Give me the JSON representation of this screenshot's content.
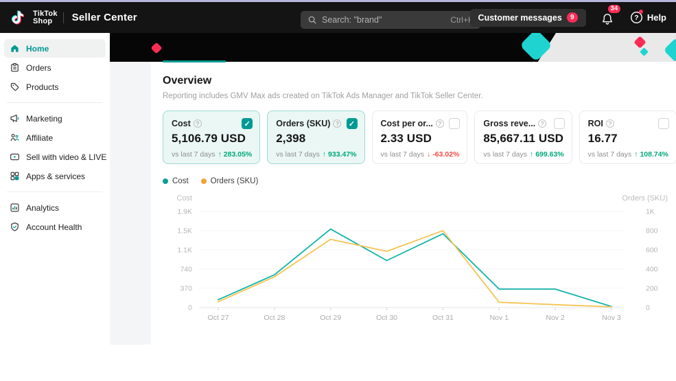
{
  "colors": {
    "accent": "#009a93",
    "positive": "#00a87a",
    "negative": "#f54a45",
    "brand_red": "#fe2c55",
    "card_selected_bg": "#eaf7f4",
    "card_selected_border": "#9edbd2"
  },
  "header": {
    "logo_line1": "TikTok",
    "logo_line2": "Shop",
    "app_title": "Seller Center",
    "search": {
      "placeholder": "Search: \"brand\"",
      "shortcut": "Ctrl+K"
    },
    "customer_messages": {
      "label": "Customer messages",
      "badge": "9"
    },
    "notifications_badge": "34",
    "help_label": "Help"
  },
  "sidebar": {
    "items": [
      {
        "label": "Home",
        "icon": "home",
        "active": true,
        "group": 0
      },
      {
        "label": "Orders",
        "icon": "orders",
        "active": false,
        "group": 0
      },
      {
        "label": "Products",
        "icon": "products",
        "active": false,
        "group": 0
      },
      {
        "label": "Marketing",
        "icon": "marketing",
        "active": false,
        "group": 1
      },
      {
        "label": "Affiliate",
        "icon": "affiliate",
        "active": false,
        "group": 1
      },
      {
        "label": "Sell with video & LIVE",
        "icon": "video",
        "active": false,
        "group": 1
      },
      {
        "label": "Apps & services",
        "icon": "apps",
        "active": false,
        "group": 1
      },
      {
        "label": "Analytics",
        "icon": "analytics",
        "active": false,
        "group": 2
      },
      {
        "label": "Account Health",
        "icon": "health",
        "active": false,
        "group": 2
      }
    ]
  },
  "overview": {
    "title": "Overview",
    "subtitle": "Reporting includes GMV Max ads created on TikTok Ads Manager and TikTok Seller Center.",
    "cards": [
      {
        "label": "Cost",
        "value": "5,106.79 USD",
        "compare": "vs last 7 days",
        "delta": "283.05%",
        "direction": "up",
        "checked": true
      },
      {
        "label": "Orders (SKU)",
        "value": "2,398",
        "compare": "vs last 7 days",
        "delta": "933.47%",
        "direction": "up",
        "checked": true
      },
      {
        "label": "Cost per or...",
        "value": "2.33 USD",
        "compare": "vs last 7 days",
        "delta": "-63.02%",
        "direction": "down",
        "checked": false
      },
      {
        "label": "Gross reve...",
        "value": "85,667.11 USD",
        "compare": "vs last 7 days",
        "delta": "699.63%",
        "direction": "up",
        "checked": false
      },
      {
        "label": "ROI",
        "value": "16.77",
        "compare": "vs last 7 days",
        "delta": "108.74%",
        "direction": "up",
        "checked": false
      }
    ]
  },
  "chart_data": {
    "type": "line",
    "categories": [
      "Oct 27",
      "Oct 28",
      "Oct 29",
      "Oct 30",
      "Oct 31",
      "Nov 1",
      "Nov 2",
      "Nov 3"
    ],
    "series": [
      {
        "name": "Cost",
        "axis": "left",
        "color": "#10b3aa",
        "values": [
          150,
          630,
          1510,
          905,
          1420,
          355,
          355,
          20
        ]
      },
      {
        "name": "Orders (SKU)",
        "axis": "right",
        "color": "#f5c451",
        "values": [
          60,
          320,
          710,
          585,
          800,
          55,
          30,
          8
        ]
      }
    ],
    "left_axis": {
      "title": "Cost",
      "ticks": [
        "0",
        "370",
        "740",
        "1.1K",
        "1.5K",
        "1.9K"
      ],
      "max": 1850
    },
    "right_axis": {
      "title": "Orders (SKU)",
      "ticks": [
        "0",
        "200",
        "400",
        "600",
        "800",
        "1K"
      ],
      "max": 1000
    },
    "legend": [
      {
        "label": "Cost",
        "color": "#0a9e96"
      },
      {
        "label": "Orders (SKU)",
        "color": "#efa23b"
      }
    ],
    "grid": true,
    "legend_position": "top-left"
  }
}
